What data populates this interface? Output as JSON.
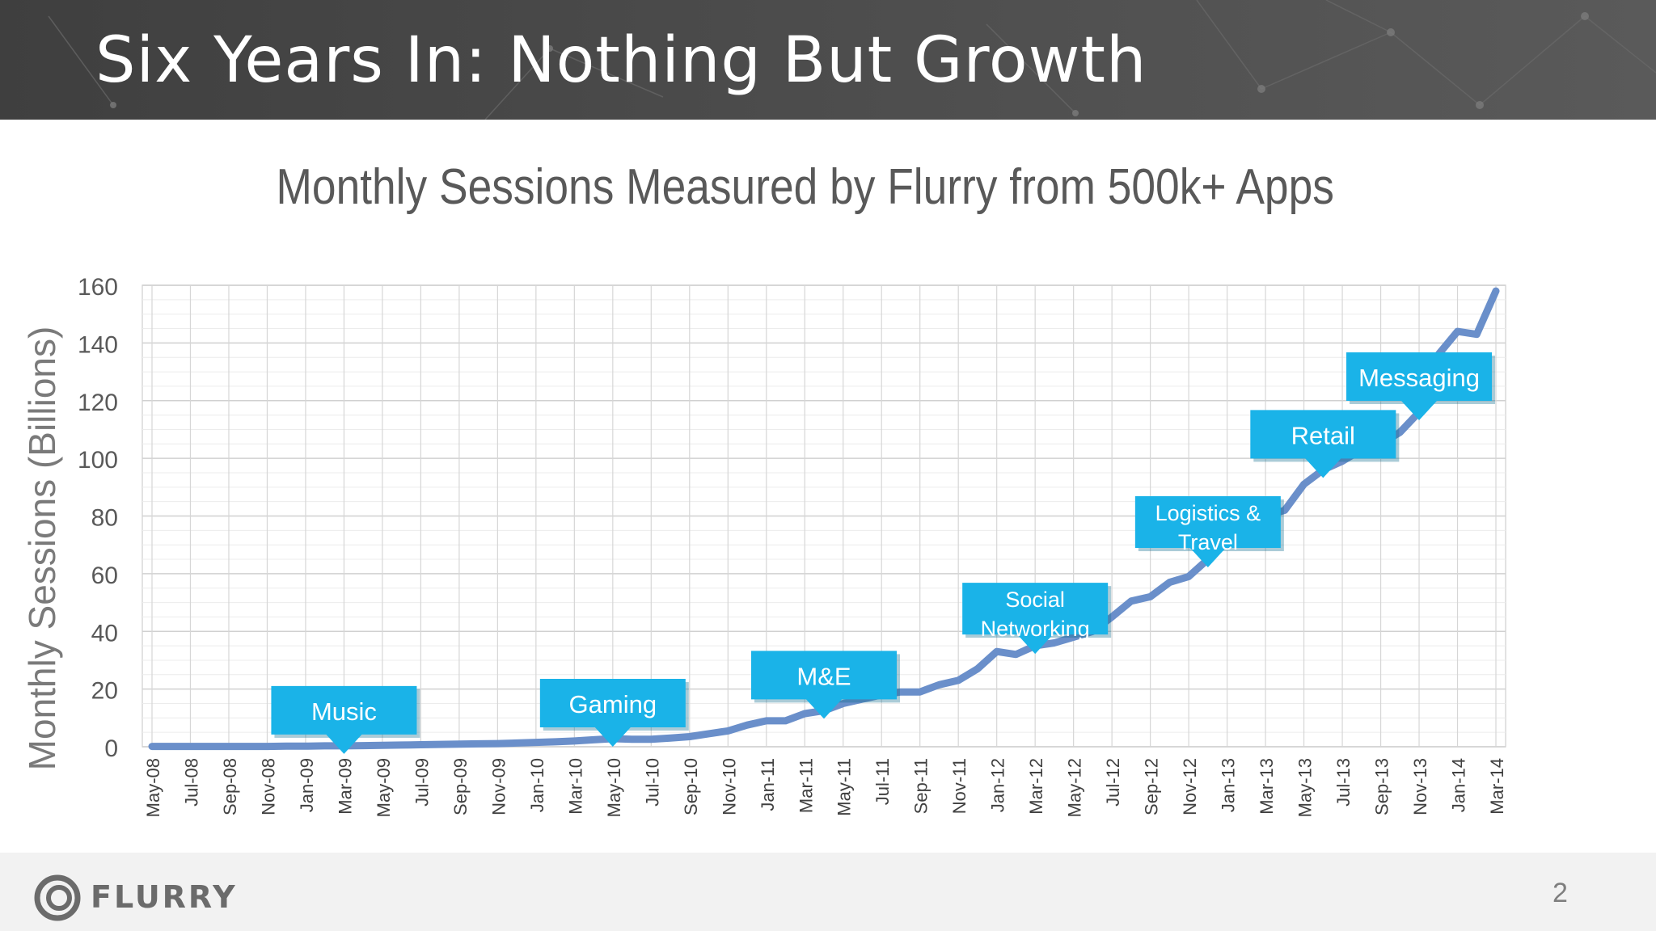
{
  "slide": {
    "title": "Six Years In: Nothing But Growth",
    "page_number": "2",
    "logo_text": "FLURRY"
  },
  "colors": {
    "header_bg": "#474747",
    "line": "#6a8fca",
    "callout": "#1ab3e8",
    "grid": "#d9d9d9",
    "text": "#595959"
  },
  "chart_data": {
    "type": "line",
    "title": "Monthly Sessions Measured by Flurry from 500k+ Apps",
    "ylabel": "Monthly Sessions (Billions)",
    "xlabel": "",
    "ylim": [
      0,
      160
    ],
    "yticks": [
      0,
      20,
      40,
      60,
      80,
      100,
      120,
      140,
      160
    ],
    "grid": true,
    "x_tick_labels": [
      "May-08",
      "Jul-08",
      "Sep-08",
      "Nov-08",
      "Jan-09",
      "Mar-09",
      "May-09",
      "Jul-09",
      "Sep-09",
      "Nov-09",
      "Jan-10",
      "Mar-10",
      "May-10",
      "Jul-10",
      "Sep-10",
      "Nov-10",
      "Jan-11",
      "Mar-11",
      "May-11",
      "Jul-11",
      "Sep-11",
      "Nov-11",
      "Jan-12",
      "Mar-12",
      "May-12",
      "Jul-12",
      "Sep-12",
      "Nov-12",
      "Jan-13",
      "Mar-13",
      "May-13",
      "Jul-13",
      "Sep-13",
      "Nov-13",
      "Jan-14",
      "Mar-14"
    ],
    "x": [
      "May-08",
      "Jun-08",
      "Jul-08",
      "Aug-08",
      "Sep-08",
      "Oct-08",
      "Nov-08",
      "Dec-08",
      "Jan-09",
      "Feb-09",
      "Mar-09",
      "Apr-09",
      "May-09",
      "Jun-09",
      "Jul-09",
      "Aug-09",
      "Sep-09",
      "Oct-09",
      "Nov-09",
      "Dec-09",
      "Jan-10",
      "Feb-10",
      "Mar-10",
      "Apr-10",
      "May-10",
      "Jun-10",
      "Jul-10",
      "Aug-10",
      "Sep-10",
      "Oct-10",
      "Nov-10",
      "Dec-10",
      "Jan-11",
      "Feb-11",
      "Mar-11",
      "Apr-11",
      "May-11",
      "Jun-11",
      "Jul-11",
      "Aug-11",
      "Sep-11",
      "Oct-11",
      "Nov-11",
      "Dec-11",
      "Jan-12",
      "Feb-12",
      "Mar-12",
      "Apr-12",
      "May-12",
      "Jun-12",
      "Jul-12",
      "Aug-12",
      "Sep-12",
      "Oct-12",
      "Nov-12",
      "Dec-12",
      "Jan-13",
      "Feb-13",
      "Mar-13",
      "Apr-13",
      "May-13",
      "Jun-13",
      "Jul-13",
      "Aug-13",
      "Sep-13",
      "Oct-13",
      "Nov-13",
      "Dec-13",
      "Jan-14",
      "Feb-14",
      "Mar-14"
    ],
    "series": [
      {
        "values": [
          0.1,
          0.1,
          0.1,
          0.1,
          0.1,
          0.1,
          0.1,
          0.2,
          0.2,
          0.3,
          0.3,
          0.4,
          0.5,
          0.6,
          0.7,
          0.8,
          0.9,
          1.0,
          1.1,
          1.3,
          1.5,
          1.7,
          2.0,
          2.4,
          2.8,
          2.6,
          2.6,
          3.0,
          3.5,
          4.5,
          5.5,
          7.5,
          9.0,
          9.0,
          11.5,
          12.5,
          15.0,
          16.5,
          18.0,
          19.0,
          19.0,
          21.5,
          23.0,
          27.0,
          33.0,
          32.0,
          35.0,
          36.0,
          38.0,
          40.0,
          45.0,
          50.5,
          52.0,
          57.0,
          59.0,
          65.0,
          73.0,
          71.0,
          80.0,
          82.0,
          91.0,
          96.0,
          99.0,
          103.0,
          105.0,
          109.0,
          116.0,
          136.0,
          144.0,
          143.0,
          158.0
        ]
      }
    ],
    "annotations": [
      {
        "label": "Music",
        "x": "Mar-09"
      },
      {
        "label": "Gaming",
        "x": "May-10"
      },
      {
        "label": "M&E",
        "x": "Apr-11"
      },
      {
        "label": "Social Networking",
        "x": "Mar-12"
      },
      {
        "label": "Logistics & Travel",
        "x": "Dec-12"
      },
      {
        "label": "Retail",
        "x": "Jun-13"
      },
      {
        "label": "Messaging",
        "x": "Nov-13"
      }
    ]
  }
}
